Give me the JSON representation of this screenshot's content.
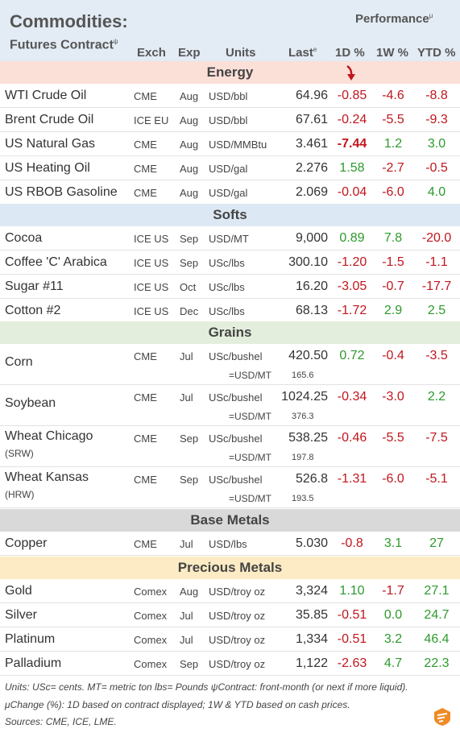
{
  "header": {
    "title": "Commodities:",
    "subtitle": "Futures Contract",
    "subtitle_mark": "ψ",
    "performance": "Performance",
    "performance_mark": "μ",
    "col_exch": "Exch",
    "col_exp": "Exp",
    "col_units": "Units",
    "col_last": "Last",
    "col_last_mark": "e",
    "col_1d": "1D %",
    "col_1w": "1W %",
    "col_ytd": "YTD %"
  },
  "colors": {
    "header_bg": "#e3ebf4",
    "energy": "#fbe0d8",
    "softs": "#dce8f4",
    "grains": "#e3efdc",
    "base_metals": "#d9d9d9",
    "precious_metals": "#fcebc4",
    "negative": "#c0161d",
    "positive": "#2c9a2c",
    "arrow": "#c0161d"
  },
  "chart_data": {
    "type": "table",
    "sections": [
      {
        "name": "Energy",
        "rows": [
          {
            "name": "WTI Crude Oil",
            "exch": "CME",
            "exp": "Aug",
            "units": "USD/bbl",
            "last": "64.96",
            "d1": "-0.85",
            "w1": "-4.6",
            "ytd": "-8.8"
          },
          {
            "name": "Brent Crude Oil",
            "exch": "ICE EU",
            "exp": "Aug",
            "units": "USD/bbl",
            "last": "67.61",
            "d1": "-0.24",
            "w1": "-5.5",
            "ytd": "-9.3"
          },
          {
            "name": "US Natural Gas",
            "exch": "CME",
            "exp": "Aug",
            "units": "USD/MMBtu",
            "last": "3.461",
            "d1": "-7.44",
            "w1": "1.2",
            "ytd": "3.0",
            "d1_bold": true
          },
          {
            "name": "US Heating Oil",
            "exch": "CME",
            "exp": "Aug",
            "units": "USD/gal",
            "last": "2.276",
            "d1": "1.58",
            "w1": "-2.7",
            "ytd": "-0.5"
          },
          {
            "name": "US RBOB Gasoline",
            "exch": "CME",
            "exp": "Aug",
            "units": "USD/gal",
            "last": "2.069",
            "d1": "-0.04",
            "w1": "-6.0",
            "ytd": "4.0"
          }
        ]
      },
      {
        "name": "Softs",
        "rows": [
          {
            "name": "Cocoa",
            "exch": "ICE US",
            "exp": "Sep",
            "units": "USD/MT",
            "last": "9,000",
            "d1": "0.89",
            "w1": "7.8",
            "ytd": "-20.0"
          },
          {
            "name": "Coffee 'C' Arabica",
            "exch": "ICE US",
            "exp": "Sep",
            "units": "USc/lbs",
            "last": "300.10",
            "d1": "-1.20",
            "w1": "-1.5",
            "ytd": "-1.1"
          },
          {
            "name": "Sugar #11",
            "exch": "ICE US",
            "exp": "Oct",
            "units": "USc/lbs",
            "last": "16.20",
            "d1": "-3.05",
            "w1": "-0.7",
            "ytd": "-17.7"
          },
          {
            "name": "Cotton #2",
            "exch": "ICE US",
            "exp": "Dec",
            "units": "USc/lbs",
            "last": "68.13",
            "d1": "-1.72",
            "w1": "2.9",
            "ytd": "2.5"
          }
        ]
      },
      {
        "name": "Grains",
        "rows": [
          {
            "name": "Corn",
            "sub": "",
            "exch": "CME",
            "exp": "Jul",
            "units": "USc/bushel",
            "last": "420.50",
            "conv_label": "=USD/MT",
            "conv": "165.6",
            "d1": "0.72",
            "w1": "-0.4",
            "ytd": "-3.5"
          },
          {
            "name": "Soybean",
            "sub": "",
            "exch": "CME",
            "exp": "Jul",
            "units": "USc/bushel",
            "last": "1024.25",
            "conv_label": "=USD/MT",
            "conv": "376.3",
            "d1": "-0.34",
            "w1": "-3.0",
            "ytd": "2.2"
          },
          {
            "name": "Wheat Chicago",
            "sub": "(SRW)",
            "exch": "CME",
            "exp": "Sep",
            "units": "USc/bushel",
            "last": "538.25",
            "conv_label": "=USD/MT",
            "conv": "197.8",
            "d1": "-0.46",
            "w1": "-5.5",
            "ytd": "-7.5"
          },
          {
            "name": "Wheat Kansas",
            "sub": "(HRW)",
            "exch": "CME",
            "exp": "Sep",
            "units": "USc/bushel",
            "last": "526.8",
            "conv_label": "=USD/MT",
            "conv": "193.5",
            "d1": "-1.31",
            "w1": "-6.0",
            "ytd": "-5.1"
          }
        ]
      },
      {
        "name": "Base Metals",
        "rows": [
          {
            "name": "Copper",
            "exch": "CME",
            "exp": "Jul",
            "units": "USD/lbs",
            "last": "5.030",
            "d1": "-0.8",
            "w1": "3.1",
            "ytd": "27"
          }
        ]
      },
      {
        "name": "Precious Metals",
        "rows": [
          {
            "name": "Gold",
            "exch": "Comex",
            "exp": "Aug",
            "units": "USD/troy oz",
            "last": "3,324",
            "d1": "1.10",
            "w1": "-1.7",
            "ytd": "27.1"
          },
          {
            "name": "Silver",
            "exch": "Comex",
            "exp": "Jul",
            "units": "USD/troy oz",
            "last": "35.85",
            "d1": "-0.51",
            "w1": "0.0",
            "ytd": "24.7"
          },
          {
            "name": "Platinum",
            "exch": "Comex",
            "exp": "Jul",
            "units": "USD/troy oz",
            "last": "1,334",
            "d1": "-0.51",
            "w1": "3.2",
            "ytd": "46.4"
          },
          {
            "name": "Palladium",
            "exch": "Comex",
            "exp": "Sep",
            "units": "USD/troy oz",
            "last": "1,122",
            "d1": "-2.63",
            "w1": "4.7",
            "ytd": "22.3"
          }
        ]
      }
    ]
  },
  "footer": {
    "line1": "Units: USc= cents.   MT= metric ton   lbs= Pounds  ψContract: front-month (or next if more liquid).",
    "line2": "μChange (%): 1D based on contract displayed; 1W & YTD based on cash prices.",
    "line3": "Sources: CME, ICE, LME."
  },
  "icons": {
    "arrow": "down-arrow-icon",
    "logo": "brand-logo-icon"
  }
}
